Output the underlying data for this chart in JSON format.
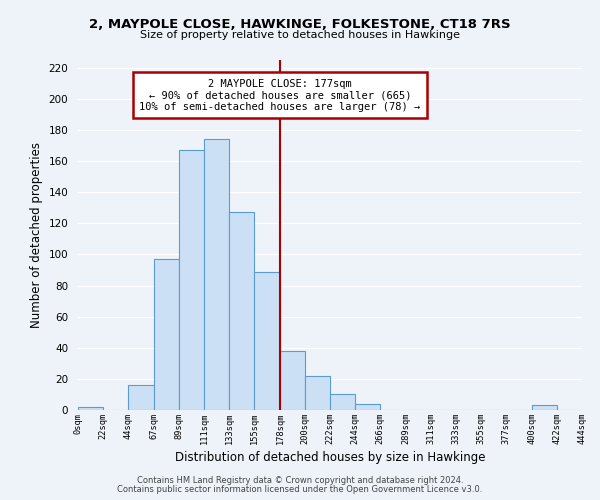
{
  "title": "2, MAYPOLE CLOSE, HAWKINGE, FOLKESTONE, CT18 7RS",
  "subtitle": "Size of property relative to detached houses in Hawkinge",
  "xlabel": "Distribution of detached houses by size in Hawkinge",
  "ylabel": "Number of detached properties",
  "bar_color": "#cce0f5",
  "bar_edge_color": "#5b9bd5",
  "vline_x": 178,
  "vline_color": "#aa0000",
  "annotation_title": "2 MAYPOLE CLOSE: 177sqm",
  "annotation_line1": "← 90% of detached houses are smaller (665)",
  "annotation_line2": "10% of semi-detached houses are larger (78) →",
  "bin_edges": [
    0,
    22,
    44,
    67,
    89,
    111,
    133,
    155,
    178,
    200,
    222,
    244,
    266,
    289,
    311,
    333,
    355,
    377,
    400,
    422,
    444
  ],
  "bin_heights": [
    2,
    0,
    16,
    97,
    167,
    174,
    127,
    89,
    38,
    22,
    10,
    4,
    0,
    0,
    0,
    0,
    0,
    0,
    3,
    0
  ],
  "xlim": [
    0,
    444
  ],
  "ylim": [
    0,
    225
  ],
  "yticks": [
    0,
    20,
    40,
    60,
    80,
    100,
    120,
    140,
    160,
    180,
    200,
    220
  ],
  "xtick_labels": [
    "0sqm",
    "22sqm",
    "44sqm",
    "67sqm",
    "89sqm",
    "111sqm",
    "133sqm",
    "155sqm",
    "178sqm",
    "200sqm",
    "222sqm",
    "244sqm",
    "266sqm",
    "289sqm",
    "311sqm",
    "333sqm",
    "355sqm",
    "377sqm",
    "400sqm",
    "422sqm",
    "444sqm"
  ],
  "footer_line1": "Contains HM Land Registry data © Crown copyright and database right 2024.",
  "footer_line2": "Contains public sector information licensed under the Open Government Licence v3.0.",
  "bg_color": "#eef2f9"
}
